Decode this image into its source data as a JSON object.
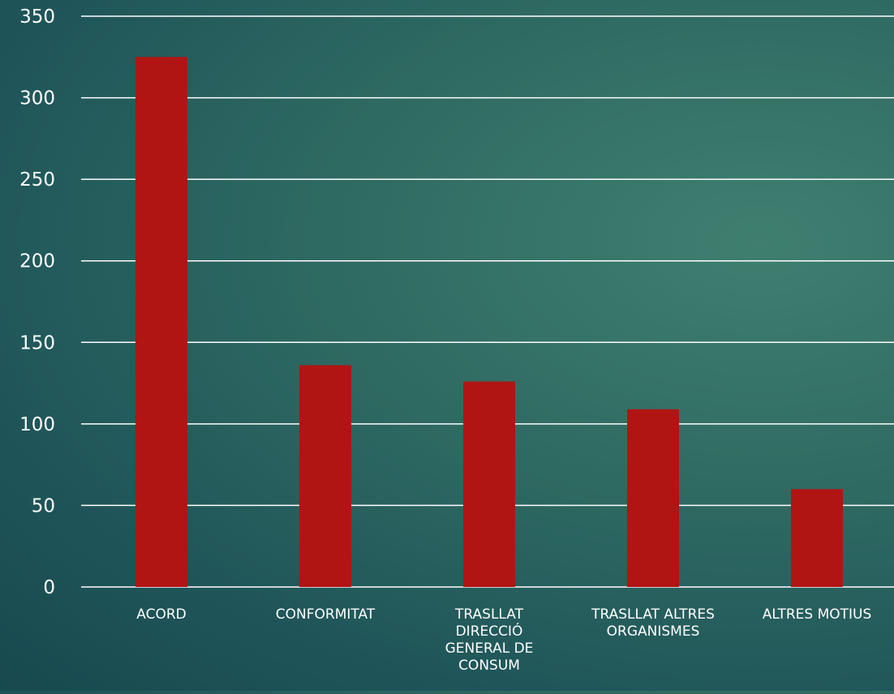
{
  "chart_data": {
    "type": "bar",
    "categories": [
      [
        "ACORD"
      ],
      [
        "CONFORMITAT"
      ],
      [
        "TRASLLAT",
        "DIRECCIÓ",
        "GENERAL DE",
        "CONSUM"
      ],
      [
        "TRASLLAT ALTRES",
        "ORGANISMES"
      ],
      [
        "ALTRES MOTIUS"
      ]
    ],
    "values": [
      325,
      136,
      126,
      109,
      60
    ],
    "ylim": [
      0,
      350
    ],
    "yticks": [
      0,
      50,
      100,
      150,
      200,
      250,
      300,
      350
    ],
    "grid": true,
    "title": "",
    "xlabel": "",
    "ylabel": "",
    "colors": {
      "bar": "#b01513",
      "grid": "#ffffff",
      "text": "#ffffff"
    }
  }
}
